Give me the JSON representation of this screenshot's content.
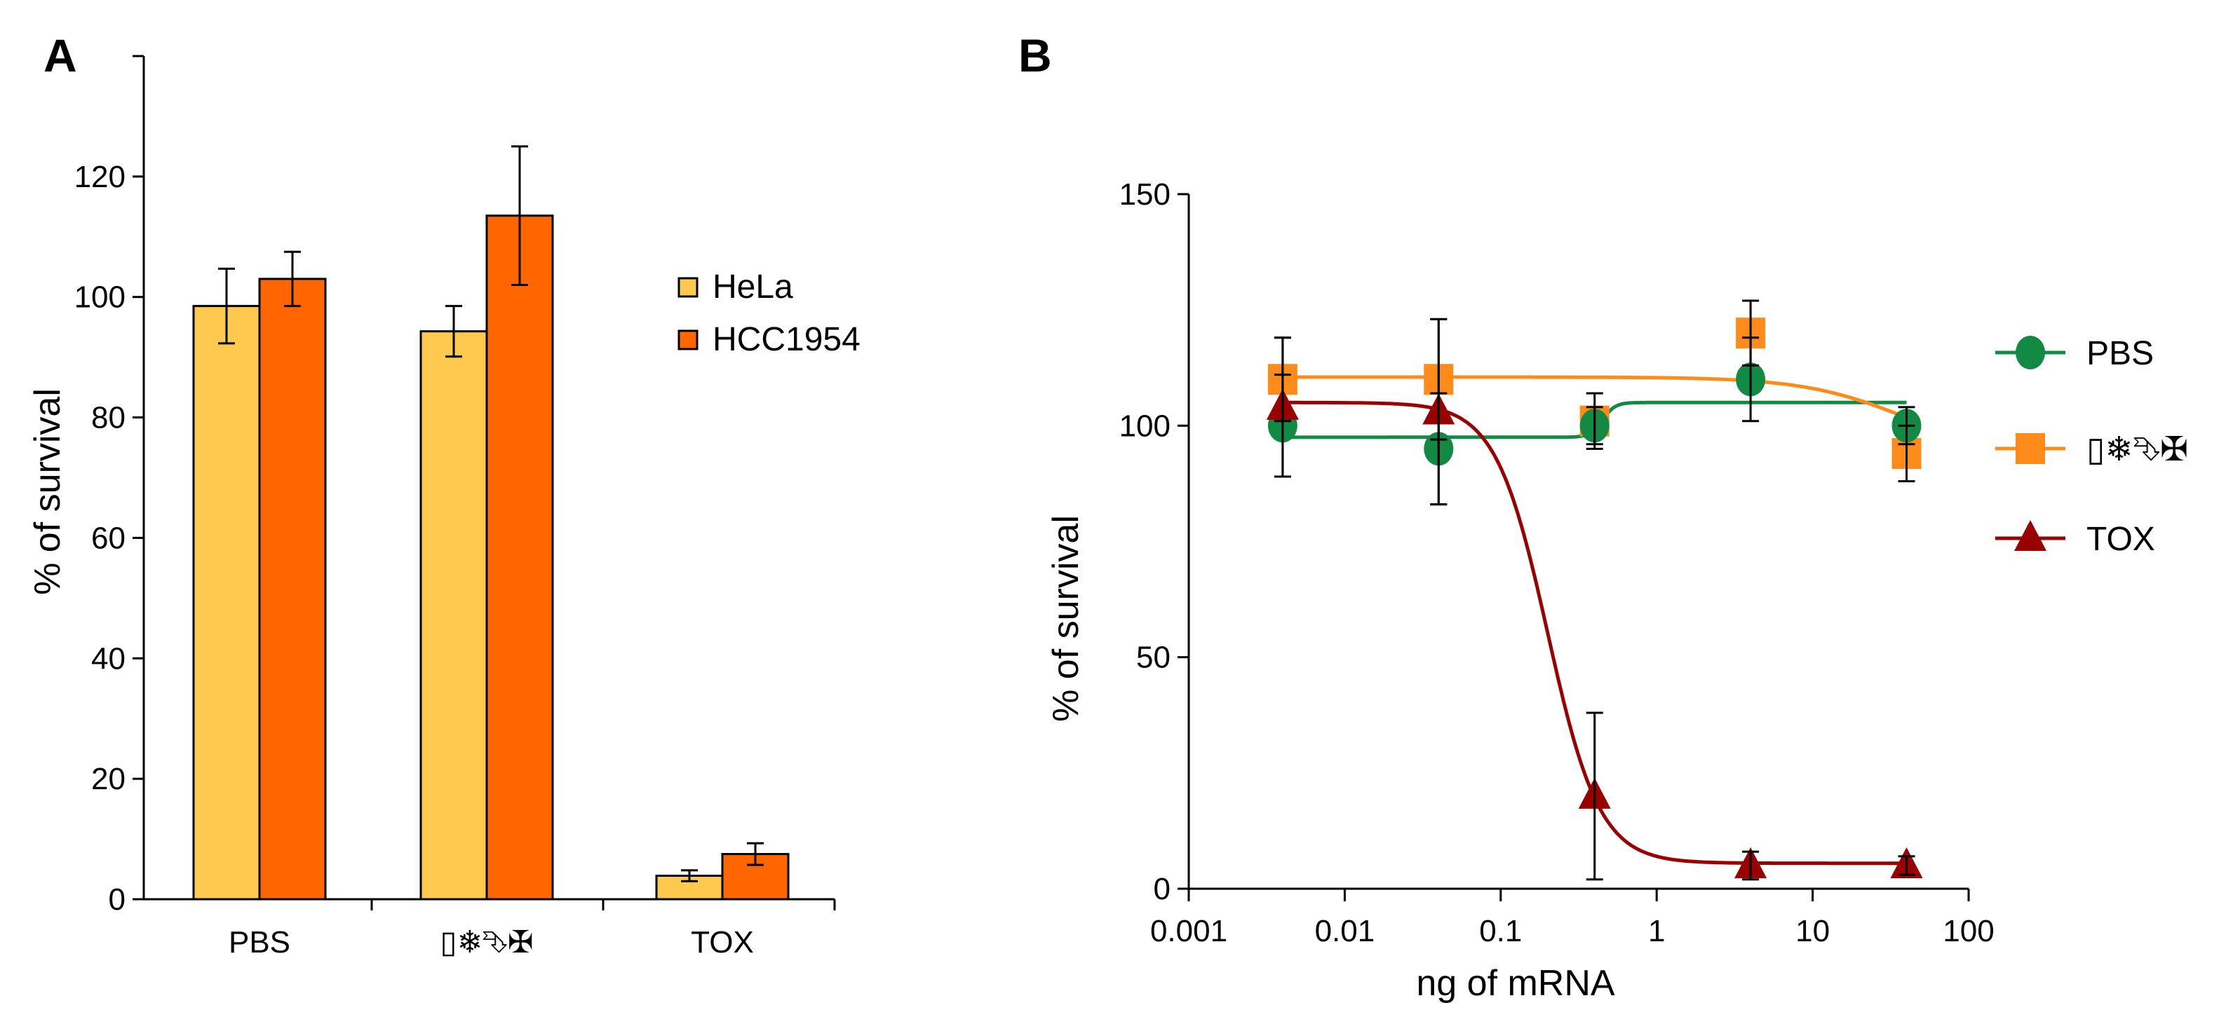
{
  "chart_data": [
    {
      "panel": "A",
      "type": "bar",
      "title": "",
      "xlabel": "",
      "ylabel": "% of survival",
      "ylim": [
        0,
        140
      ],
      "yticks": [
        0,
        20,
        40,
        60,
        80,
        100,
        120
      ],
      "categories": [
        "PBS",
        "▯❄⮷✠",
        "TOX"
      ],
      "series": [
        {
          "name": "HeLa",
          "color": "#FFC84F",
          "values": [
            98.5,
            94.3,
            3.9
          ],
          "errors": [
            6.2,
            4.2,
            0.9
          ]
        },
        {
          "name": "HCC1954",
          "color": "#FF6600",
          "values": [
            103.0,
            113.5,
            7.5
          ],
          "errors": [
            4.5,
            11.5,
            1.8
          ]
        }
      ],
      "legend_position": "right"
    },
    {
      "panel": "B",
      "type": "line",
      "subtype": "dose-response scatter with fitted curves",
      "title": "",
      "xlabel": "ng of mRNA",
      "ylabel": "% of survival",
      "xscale": "log",
      "xlim": [
        0.001,
        100
      ],
      "ylim": [
        0,
        150
      ],
      "xtick_labels": [
        "0.001",
        "0.01",
        "0.1",
        "1",
        "10",
        "100"
      ],
      "yticks": [
        0,
        50,
        100,
        150
      ],
      "x": [
        0.004,
        0.04,
        0.4,
        4,
        40
      ],
      "series": [
        {
          "name": "PBS",
          "color": "#138A43",
          "marker": "circle",
          "values": [
            100,
            95,
            100,
            110,
            100
          ],
          "errors": [
            11,
            12,
            4,
            9,
            4
          ],
          "fit": {
            "kind": "step",
            "low": 97.5,
            "high": 105,
            "x0": 0.45,
            "slope": 25
          }
        },
        {
          "name": "▯❄⮷✠",
          "color": "#FF8C1A",
          "marker": "square",
          "values": [
            110,
            110,
            101,
            120,
            94
          ],
          "errors": [
            9,
            13,
            6,
            7,
            6
          ],
          "fit": {
            "kind": "drop",
            "top": 110.5,
            "bottom": 93,
            "x0": 40,
            "slope": 3
          }
        },
        {
          "name": "TOX",
          "color": "#990000",
          "marker": "triangle",
          "values": [
            104,
            103,
            20,
            5,
            5
          ],
          "errors": [
            15,
            20,
            18,
            3,
            2
          ],
          "fit": {
            "kind": "sigmoid",
            "top": 105,
            "bottom": 5.5,
            "ec50": 0.2,
            "hill": 2.6
          }
        }
      ],
      "legend_position": "right"
    }
  ],
  "panels": {
    "a_label": "A",
    "b_label": "B"
  }
}
